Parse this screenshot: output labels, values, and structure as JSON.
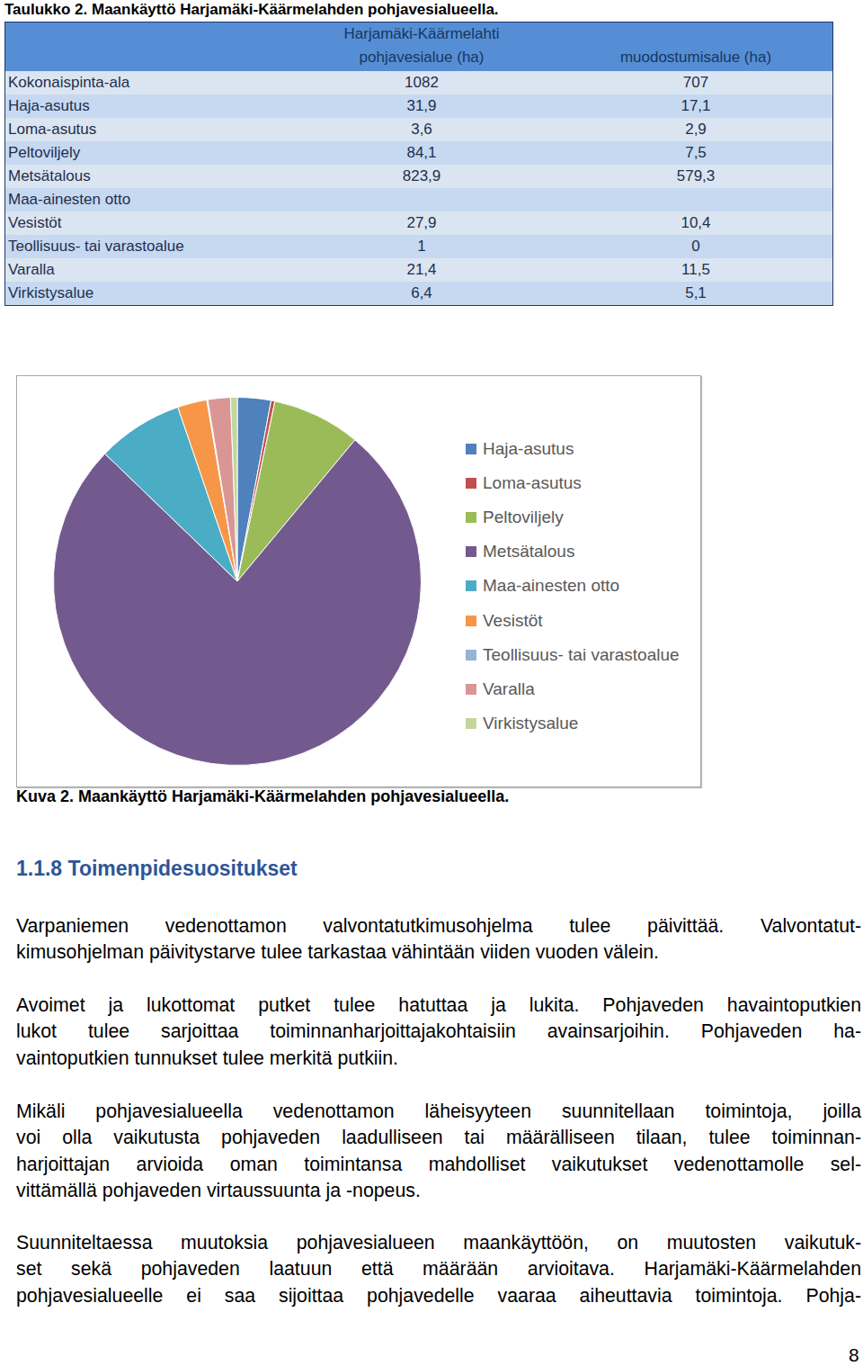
{
  "table": {
    "caption": "Taulukko 2. Maankäyttö Harjamäki-Käärmelahden pohjavesialueella.",
    "header": [
      [
        "Harjamäki-Käärmelahti",
        "pohjavesialue (ha)"
      ],
      [
        "muodostumisalue (ha)"
      ]
    ],
    "rows": [
      [
        "Kokonaispinta-ala",
        "1082",
        "707"
      ],
      [
        "Haja-asutus",
        "31,9",
        "17,1"
      ],
      [
        "Loma-asutus",
        "3,6",
        "2,9"
      ],
      [
        "Peltoviljely",
        "84,1",
        "7,5"
      ],
      [
        "Metsätalous",
        "823,9",
        "579,3"
      ],
      [
        "Maa-ainesten otto",
        null,
        null
      ],
      [
        "Vesistöt",
        "27,9",
        "10,4"
      ],
      [
        "Teollisuus- tai varastoalue",
        "1",
        "0"
      ],
      [
        "Varalla",
        "21,4",
        "11,5"
      ],
      [
        "Virkistysalue",
        "6,4",
        "5,1"
      ]
    ]
  },
  "chart_data": {
    "type": "pie",
    "categories": [
      "Haja-asutus",
      "Loma-asutus",
      "Peltoviljely",
      "Metsätalous",
      "Maa-ainesten otto",
      "Vesistöt",
      "Teollisuus- tai varastoalue",
      "Varalla",
      "Virkistysalue"
    ],
    "values": [
      31.9,
      3.6,
      84.1,
      823.9,
      81.8,
      27.9,
      1,
      21.4,
      6.4
    ],
    "colors": [
      "#4f81bd",
      "#c0504d",
      "#9bbb59",
      "#735a8e",
      "#4bacc6",
      "#f79646",
      "#95b3d7",
      "#d99694",
      "#c3d69b"
    ],
    "legend": "right"
  },
  "figure_caption": "Kuva 2. Maankäyttö Harjamäki-Käärmelahden pohjavesialueella.",
  "section_heading": "1.1.8 Toimenpidesuositukset",
  "paragraphs": [
    [
      "Varpaniemen vedenottamon valvontatutkimusohjelma tulee päivittää. Valvontatut-",
      "kimusohjelman päivitystarve tulee tarkastaa vähintään viiden vuoden välein."
    ],
    [
      "Avoimet ja lukottomat putket tulee hatuttaa ja lukita. Pohjaveden havaintoputkien",
      "lukot tulee sarjoittaa toiminnanharjoittajakohtaisiin avainsarjoihin. Pohjaveden ha-",
      "vaintoputkien tunnukset tulee merkitä putkiin."
    ],
    [
      "Mikäli pohjavesialueella vedenottamon läheisyyteen suunnitellaan toimintoja, joilla",
      "voi olla vaikutusta pohjaveden laadulliseen tai määrälliseen tilaan, tulee toiminnan-",
      "harjoittajan arvioida oman toimintansa mahdolliset vaikutukset vedenottamolle sel-",
      "vittämällä pohjaveden virtaussuunta ja -nopeus."
    ],
    [
      "Suunniteltaessa muutoksia pohjavesialueen maankäyttöön, on muutosten vaikutuk-",
      "set sekä pohjaveden laatuun että määrään arvioitava. Harjamäki-Käärmelahden",
      "pohjavesialueelle ei saa sijoittaa pohjavedelle vaaraa aiheuttavia toimintoja. Pohja-"
    ]
  ],
  "page_number": "8"
}
